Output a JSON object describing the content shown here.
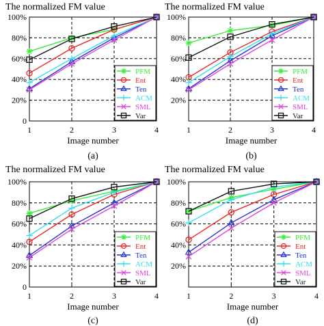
{
  "chart_data": [
    {
      "type": "line",
      "title": "The normalized FM value",
      "xlabel": "Image number",
      "ylabel": "",
      "caption": "(a)",
      "x": [
        1,
        2,
        3,
        4
      ],
      "xticks": [
        "1",
        "2",
        "3",
        "4"
      ],
      "yticks": [
        "0",
        "20%",
        "40%",
        "60%",
        "80%",
        "100%"
      ],
      "ylim": [
        0,
        100
      ],
      "grid": true,
      "legend_position": "bottom-right",
      "series": [
        {
          "name": "PFM",
          "color": "#33ee33",
          "marker": "asterisk",
          "values": [
            67,
            80,
            88,
            100
          ]
        },
        {
          "name": "Ent",
          "color": "#ee2222",
          "marker": "circle",
          "values": [
            46,
            70,
            88,
            100
          ]
        },
        {
          "name": "Ten",
          "color": "#2233cc",
          "marker": "triangle",
          "values": [
            31,
            57,
            80,
            100
          ]
        },
        {
          "name": "ACM",
          "color": "#33ddee",
          "marker": "plus",
          "values": [
            37,
            60,
            82,
            100
          ]
        },
        {
          "name": "SML",
          "color": "#dd44dd",
          "marker": "x",
          "values": [
            30,
            55,
            78,
            100
          ]
        },
        {
          "name": "Var",
          "color": "#111111",
          "marker": "square",
          "values": [
            59,
            79,
            91,
            100
          ]
        }
      ]
    },
    {
      "type": "line",
      "title": "The normalized FM value",
      "xlabel": "Image number",
      "ylabel": "",
      "caption": "(b)",
      "x": [
        1,
        2,
        3,
        4
      ],
      "xticks": [
        "1",
        "2",
        "3",
        "4"
      ],
      "yticks": [
        "20%",
        "40%",
        "60%",
        "80%",
        "100%"
      ],
      "ylim": [
        0,
        100
      ],
      "grid": true,
      "legend_position": "bottom-right",
      "series": [
        {
          "name": "PFM",
          "color": "#33ee33",
          "marker": "asterisk",
          "values": [
            75,
            87,
            92,
            100
          ]
        },
        {
          "name": "Ent",
          "color": "#ee2222",
          "marker": "circle",
          "values": [
            42,
            66,
            86,
            100
          ]
        },
        {
          "name": "Ten",
          "color": "#2233cc",
          "marker": "triangle",
          "values": [
            31,
            58,
            82,
            100
          ]
        },
        {
          "name": "ACM",
          "color": "#33ddee",
          "marker": "plus",
          "values": [
            37,
            62,
            84,
            100
          ]
        },
        {
          "name": "SML",
          "color": "#dd44dd",
          "marker": "x",
          "values": [
            30,
            55,
            78,
            100
          ]
        },
        {
          "name": "Var",
          "color": "#111111",
          "marker": "square",
          "values": [
            61,
            81,
            93,
            100
          ]
        }
      ]
    },
    {
      "type": "line",
      "title": "The normalized FM value",
      "xlabel": "Image number",
      "ylabel": "",
      "caption": "(c)",
      "x": [
        1,
        2,
        3,
        4
      ],
      "xticks": [
        "1",
        "2",
        "3",
        "4"
      ],
      "yticks": [
        "0",
        "20%",
        "40%",
        "60%",
        "80%",
        "100%"
      ],
      "ylim": [
        0,
        100
      ],
      "grid": true,
      "legend_position": "bottom-right",
      "series": [
        {
          "name": "PFM",
          "color": "#33ee33",
          "marker": "asterisk",
          "values": [
            70,
            82,
            91,
            100
          ]
        },
        {
          "name": "Ent",
          "color": "#ee2222",
          "marker": "circle",
          "values": [
            43,
            69,
            88,
            100
          ]
        },
        {
          "name": "Ten",
          "color": "#2233cc",
          "marker": "triangle",
          "values": [
            30,
            58,
            80,
            100
          ]
        },
        {
          "name": "ACM",
          "color": "#33ddee",
          "marker": "plus",
          "values": [
            49,
            75,
            90,
            100
          ]
        },
        {
          "name": "SML",
          "color": "#dd44dd",
          "marker": "x",
          "values": [
            28,
            55,
            77,
            100
          ]
        },
        {
          "name": "Var",
          "color": "#111111",
          "marker": "square",
          "values": [
            65,
            84,
            95,
            100
          ]
        }
      ]
    },
    {
      "type": "line",
      "title": "The normalized FM value",
      "xlabel": "Image number",
      "ylabel": "",
      "caption": "(d)",
      "x": [
        1,
        2,
        3,
        4
      ],
      "xticks": [
        "1",
        "2",
        "3",
        "4"
      ],
      "yticks": [
        "20%",
        "40%",
        "60%",
        "80%",
        "100%"
      ],
      "ylim": [
        0,
        100
      ],
      "grid": true,
      "legend_position": "bottom-right",
      "series": [
        {
          "name": "PFM",
          "color": "#33ee33",
          "marker": "asterisk",
          "values": [
            72,
            85,
            93,
            100
          ]
        },
        {
          "name": "Ent",
          "color": "#ee2222",
          "marker": "circle",
          "values": [
            45,
            71,
            88,
            100
          ]
        },
        {
          "name": "Ten",
          "color": "#2233cc",
          "marker": "triangle",
          "values": [
            33,
            61,
            83,
            100
          ]
        },
        {
          "name": "ACM",
          "color": "#33ddee",
          "marker": "plus",
          "values": [
            61,
            83,
            95,
            100
          ]
        },
        {
          "name": "SML",
          "color": "#dd44dd",
          "marker": "x",
          "values": [
            29,
            56,
            80,
            100
          ]
        },
        {
          "name": "Var",
          "color": "#111111",
          "marker": "square",
          "values": [
            72,
            91,
            98,
            100
          ]
        }
      ]
    }
  ]
}
